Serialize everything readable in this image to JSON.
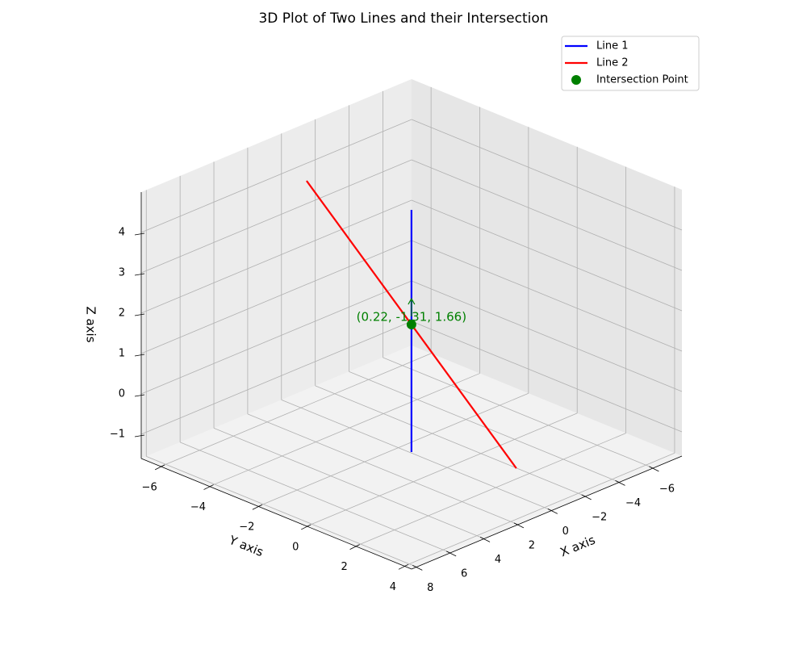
{
  "chart_data": {
    "type": "line3d",
    "title": "3D Plot of Two Lines and their Intersection",
    "xlabel": "X axis",
    "ylabel": "Y axis",
    "zlabel": "Z axis",
    "xlim": [
      -7.7,
      8.3
    ],
    "ylim": [
      -6.8,
      4.3
    ],
    "zlim": [
      -1.6,
      5.0
    ],
    "xticks": [
      {
        "value": -6,
        "label": "−6"
      },
      {
        "value": -4,
        "label": "−4"
      },
      {
        "value": -2,
        "label": "−2"
      },
      0,
      2,
      4,
      6,
      8
    ],
    "yticks": [
      {
        "value": -6,
        "label": "−6"
      },
      {
        "value": -4,
        "label": "−4"
      },
      {
        "value": -2,
        "label": "−2"
      },
      0,
      2,
      4
    ],
    "zticks": [
      {
        "value": -1,
        "label": "−1"
      },
      0,
      1,
      2,
      3,
      4
    ],
    "grid": true,
    "legend": "upper right",
    "series": [
      {
        "name": "Line 1",
        "color": "#0000ff",
        "x": [
          0.22,
          0.22
        ],
        "y": [
          -1.31,
          -1.31
        ],
        "z": [
          -1.5,
          4.5
        ]
      },
      {
        "name": "Line 2",
        "color": "#ff0000",
        "x": [
          -2.21,
          2.65
        ],
        "y": [
          1.31,
          -3.93
        ],
        "z": [
          -1.68,
          5.0
        ]
      },
      {
        "name": "Intersection Point",
        "type": "scatter",
        "color": "#008000",
        "x": [
          0.22
        ],
        "y": [
          -1.31
        ],
        "z": [
          1.66
        ]
      }
    ],
    "annotation": {
      "text": "(0.22, -1.31, 1.66)",
      "color": "#008000"
    }
  }
}
